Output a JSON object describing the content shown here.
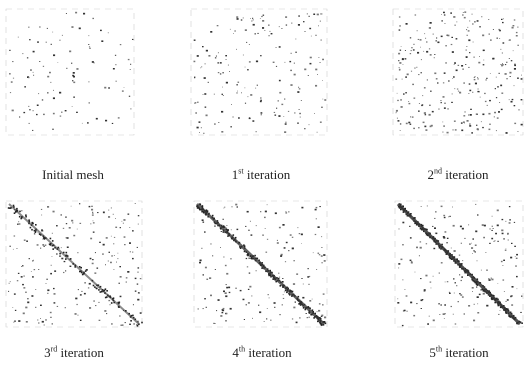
{
  "figure": {
    "panels": [
      {
        "label_main": "Initial mesh",
        "label_sup": "",
        "label_rest": "",
        "density": 0.25,
        "diagonal": 0.0
      },
      {
        "label_main": "1",
        "label_sup": "st",
        "label_rest": " iteration",
        "density": 0.55,
        "diagonal": 0.0
      },
      {
        "label_main": "2",
        "label_sup": "nd",
        "label_rest": " iteration",
        "density": 1.0,
        "diagonal": 0.0
      },
      {
        "label_main": "3",
        "label_sup": "rd",
        "label_rest": " iteration",
        "density": 0.7,
        "diagonal": 0.45
      },
      {
        "label_main": "4",
        "label_sup": "th",
        "label_rest": " iteration",
        "density": 0.55,
        "diagonal": 0.85
      },
      {
        "label_main": "5",
        "label_sup": "th",
        "label_rest": " iteration",
        "density": 0.6,
        "diagonal": 1.0
      }
    ]
  }
}
